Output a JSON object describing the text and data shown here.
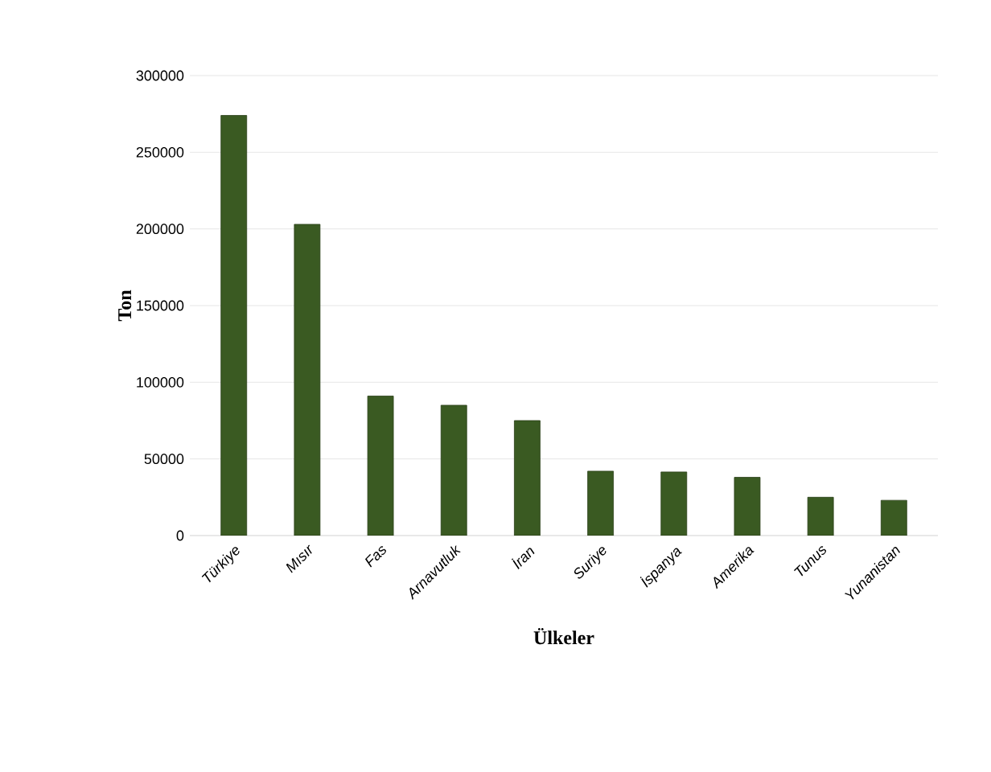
{
  "chart_data": {
    "type": "bar",
    "xlabel": "Ülkeler",
    "ylabel": "Ton",
    "categories": [
      "Türkiye",
      "Mısır",
      "Fas",
      "Arnavutluk",
      "İran",
      "Suriye",
      "İspanya",
      "Amerika",
      "Tunus",
      "Yunanistan"
    ],
    "values": [
      274000,
      203000,
      91000,
      85000,
      75000,
      42000,
      41500,
      38000,
      25000,
      23000
    ],
    "color": "#3a5a22",
    "ylim": [
      0,
      300000
    ],
    "yticks": [
      0,
      50000,
      100000,
      150000,
      200000,
      250000,
      300000
    ],
    "grid": "y"
  }
}
